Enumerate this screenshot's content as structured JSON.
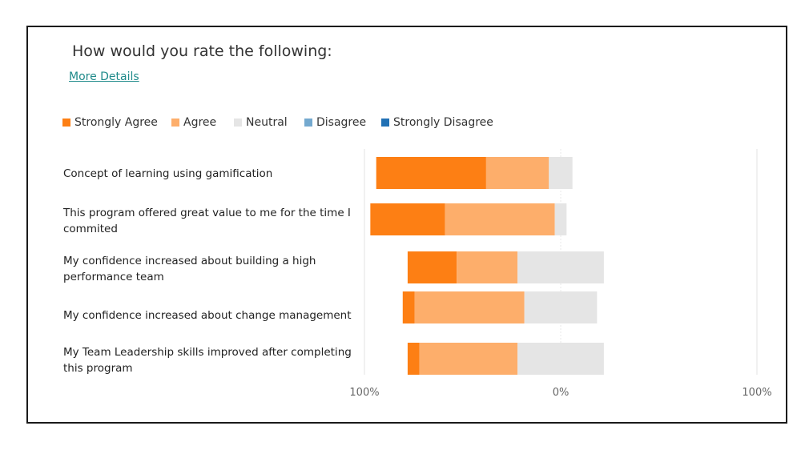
{
  "title": "How would you rate the following:",
  "details_link": "More Details",
  "colors": {
    "strongly_agree": "#fd7f14",
    "agree": "#fdae6b",
    "neutral": "#e5e5e5",
    "disagree": "#74a9cf",
    "strongly_disagree": "#2171b5"
  },
  "legend": [
    {
      "label": "Strongly Agree",
      "color": "#fd7f14"
    },
    {
      "label": "Agree",
      "color": "#fdae6b"
    },
    {
      "label": "Neutral",
      "color": "#e5e5e5"
    },
    {
      "label": "Disagree",
      "color": "#74a9cf"
    },
    {
      "label": "Strongly Disagree",
      "color": "#2171b5"
    }
  ],
  "chart_data": {
    "type": "bar",
    "orientation": "horizontal",
    "stacking": "diverging",
    "categories": [
      "Concept of learning using gamification",
      "This program offered great value to me for the time I commited",
      "My confidence increased about building a high performance team",
      "My confidence increased about change management",
      "My Team Leadership skills improved after completing this program"
    ],
    "series": [
      {
        "name": "Strongly Agree",
        "values": [
          56,
          38,
          25,
          6,
          6
        ]
      },
      {
        "name": "Agree",
        "values": [
          32,
          56,
          31,
          56,
          50
        ]
      },
      {
        "name": "Neutral",
        "values": [
          12,
          6,
          44,
          37,
          44
        ]
      },
      {
        "name": "Disagree",
        "values": [
          0,
          0,
          0,
          0,
          0
        ]
      },
      {
        "name": "Strongly Disagree",
        "values": [
          0,
          0,
          0,
          0,
          0
        ]
      }
    ],
    "x_ticks": [
      "100%",
      "0%",
      "100%"
    ],
    "xlim": [
      -100,
      100
    ],
    "grid": true,
    "legend_position": "top-left"
  }
}
